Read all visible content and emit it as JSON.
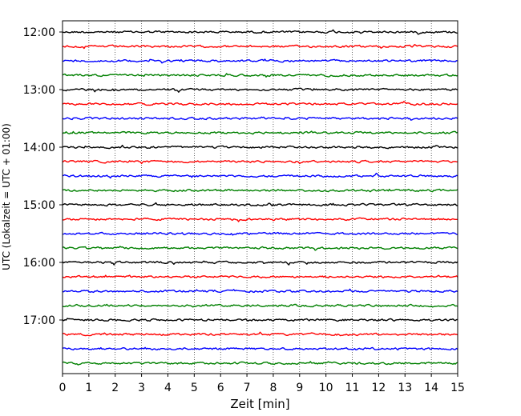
{
  "chart_data": {
    "type": "line",
    "title": "",
    "xlabel": "Zeit  [min]",
    "ylabel": "UTC (Lokalzeit = UTC + 01:00)",
    "xlim": [
      0,
      15
    ],
    "x_ticks": [
      "0",
      "1",
      "2",
      "3",
      "4",
      "5",
      "6",
      "7",
      "8",
      "9",
      "10",
      "11",
      "12",
      "13",
      "14",
      "15"
    ],
    "y_tick_labels": [
      "12:00",
      "13:00",
      "14:00",
      "15:00",
      "16:00",
      "17:00"
    ],
    "grid": "vertical dotted lines at each minute",
    "trace_start_times_utc": [
      "12:00",
      "12:15",
      "12:30",
      "12:45",
      "13:00",
      "13:15",
      "13:30",
      "13:45",
      "14:00",
      "14:15",
      "14:30",
      "14:45",
      "15:00",
      "15:15",
      "15:30",
      "15:45",
      "16:00",
      "16:15",
      "16:30",
      "16:45",
      "17:00",
      "17:15",
      "17:30",
      "17:45"
    ],
    "trace_duration_min": 15,
    "trace_colors": [
      "#000000",
      "#ff0000",
      "#0000ff",
      "#008000"
    ]
  }
}
